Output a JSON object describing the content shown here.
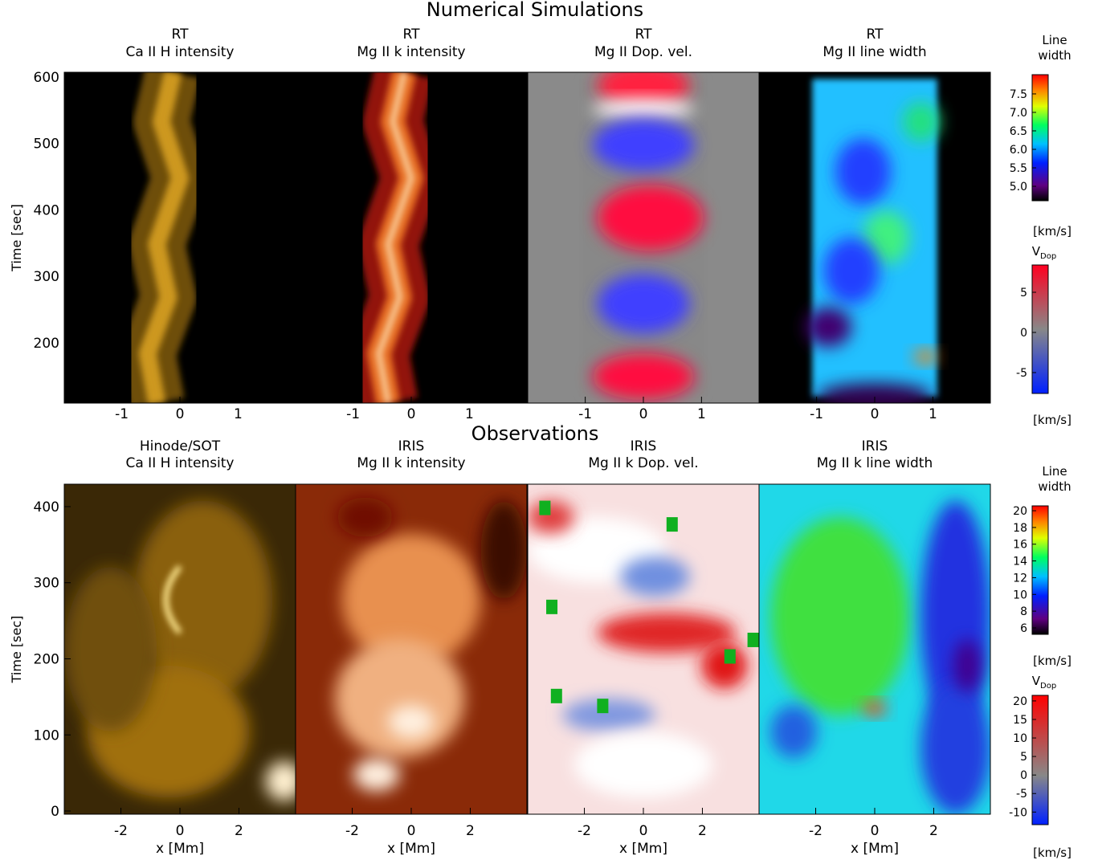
{
  "sim_title": "Numerical Simulations",
  "obs_title": "Observations",
  "rows": [
    {
      "ylabel": "Time [sec]",
      "ylim": [
        109.4,
        607
      ],
      "yticks": [
        200,
        300,
        400,
        500,
        600
      ],
      "xlim": [
        -1.99,
        1.99
      ],
      "xticks": [
        -1,
        0,
        1
      ],
      "panels": [
        {
          "title": [
            "RT",
            "Ca II H intensity"
          ]
        },
        {
          "title": [
            "RT",
            "Mg II k intensity"
          ]
        },
        {
          "title": [
            "RT",
            "Mg II Dop. vel."
          ]
        },
        {
          "title": [
            "RT",
            "Mg II line width"
          ]
        }
      ],
      "colorbars": [
        {
          "label": [
            "Line",
            "width"
          ],
          "ylim": [
            4.61,
            8.02
          ],
          "ticks": [
            {
              "value": 5,
              "label": "5.0"
            },
            5.5,
            {
              "value": 6,
              "label": "6.0"
            },
            6.5,
            {
              "value": 7,
              "label": "7.0"
            },
            7.5
          ]
        },
        {
          "unit_top": "[km/s]",
          "label": [
            "V",
            "Dop"
          ],
          "ylim": [
            -7.6,
            8.4
          ],
          "ticks": [
            -5,
            0,
            5
          ],
          "unit": "[km/s]"
        }
      ]
    },
    {
      "ylabel": "Time [sec]",
      "ylim": [
        -4.2,
        429.5
      ],
      "yticks": [
        0,
        100,
        200,
        300,
        400
      ],
      "xlim": [
        -3.92,
        3.92
      ],
      "xticks": [
        -2,
        0,
        2
      ],
      "xlabel": "x [Mm]",
      "panels": [
        {
          "title": [
            "Hinode/SOT",
            "Ca II H intensity"
          ]
        },
        {
          "title": [
            "IRIS",
            "Mg II k intensity"
          ]
        },
        {
          "title": [
            "IRIS",
            "Mg II k Dop. vel."
          ]
        },
        {
          "title": [
            "IRIS",
            "Mg II k line width"
          ]
        }
      ],
      "colorbars": [
        {
          "label": [
            "Line",
            "width"
          ],
          "ylim": [
            5.23,
            20.58
          ],
          "ticks": [
            6,
            8,
            10,
            12,
            14,
            16,
            18,
            20
          ]
        },
        {
          "unit_top": "[km/s]",
          "label": [
            "V",
            "Dop"
          ],
          "ylim": [
            -13.4,
            21.5
          ],
          "ticks": [
            -10,
            -5,
            0,
            5,
            10,
            15,
            20
          ],
          "unit": "[km/s]"
        }
      ]
    }
  ]
}
